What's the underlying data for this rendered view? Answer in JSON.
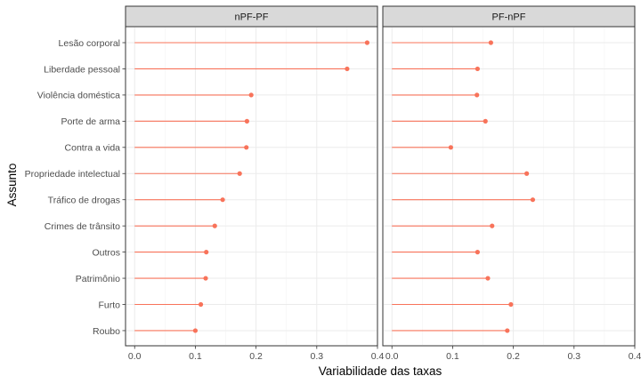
{
  "chart_data": {
    "type": "lollipop-faceted",
    "xlabel": "Variabilidade das taxas",
    "ylabel": "Assunto",
    "xlim": [
      -0.015,
      0.4
    ],
    "xticks": [
      0.0,
      0.1,
      0.2,
      0.3,
      0.4
    ],
    "xtick_labels": [
      "0.0",
      "0.1",
      "0.2",
      "0.3",
      "0.4"
    ],
    "grid": true,
    "color": "#f8735a",
    "categories": [
      "Lesão corporal",
      "Liberdade pessoal",
      "Violência doméstica",
      "Porte de arma",
      "Contra a vida",
      "Propriedade intelectual",
      "Tráfico de drogas",
      "Crimes de trânsito",
      "Outros",
      "Patrimônio",
      "Furto",
      "Roubo"
    ],
    "panels": [
      {
        "strip": "nPF-PF",
        "values": [
          0.383,
          0.35,
          0.192,
          0.185,
          0.184,
          0.173,
          0.145,
          0.132,
          0.118,
          0.117,
          0.109,
          0.1
        ]
      },
      {
        "strip": "PF-nPF",
        "values": [
          0.163,
          0.141,
          0.14,
          0.154,
          0.097,
          0.222,
          0.232,
          0.165,
          0.141,
          0.158,
          0.196,
          0.19
        ]
      }
    ]
  }
}
